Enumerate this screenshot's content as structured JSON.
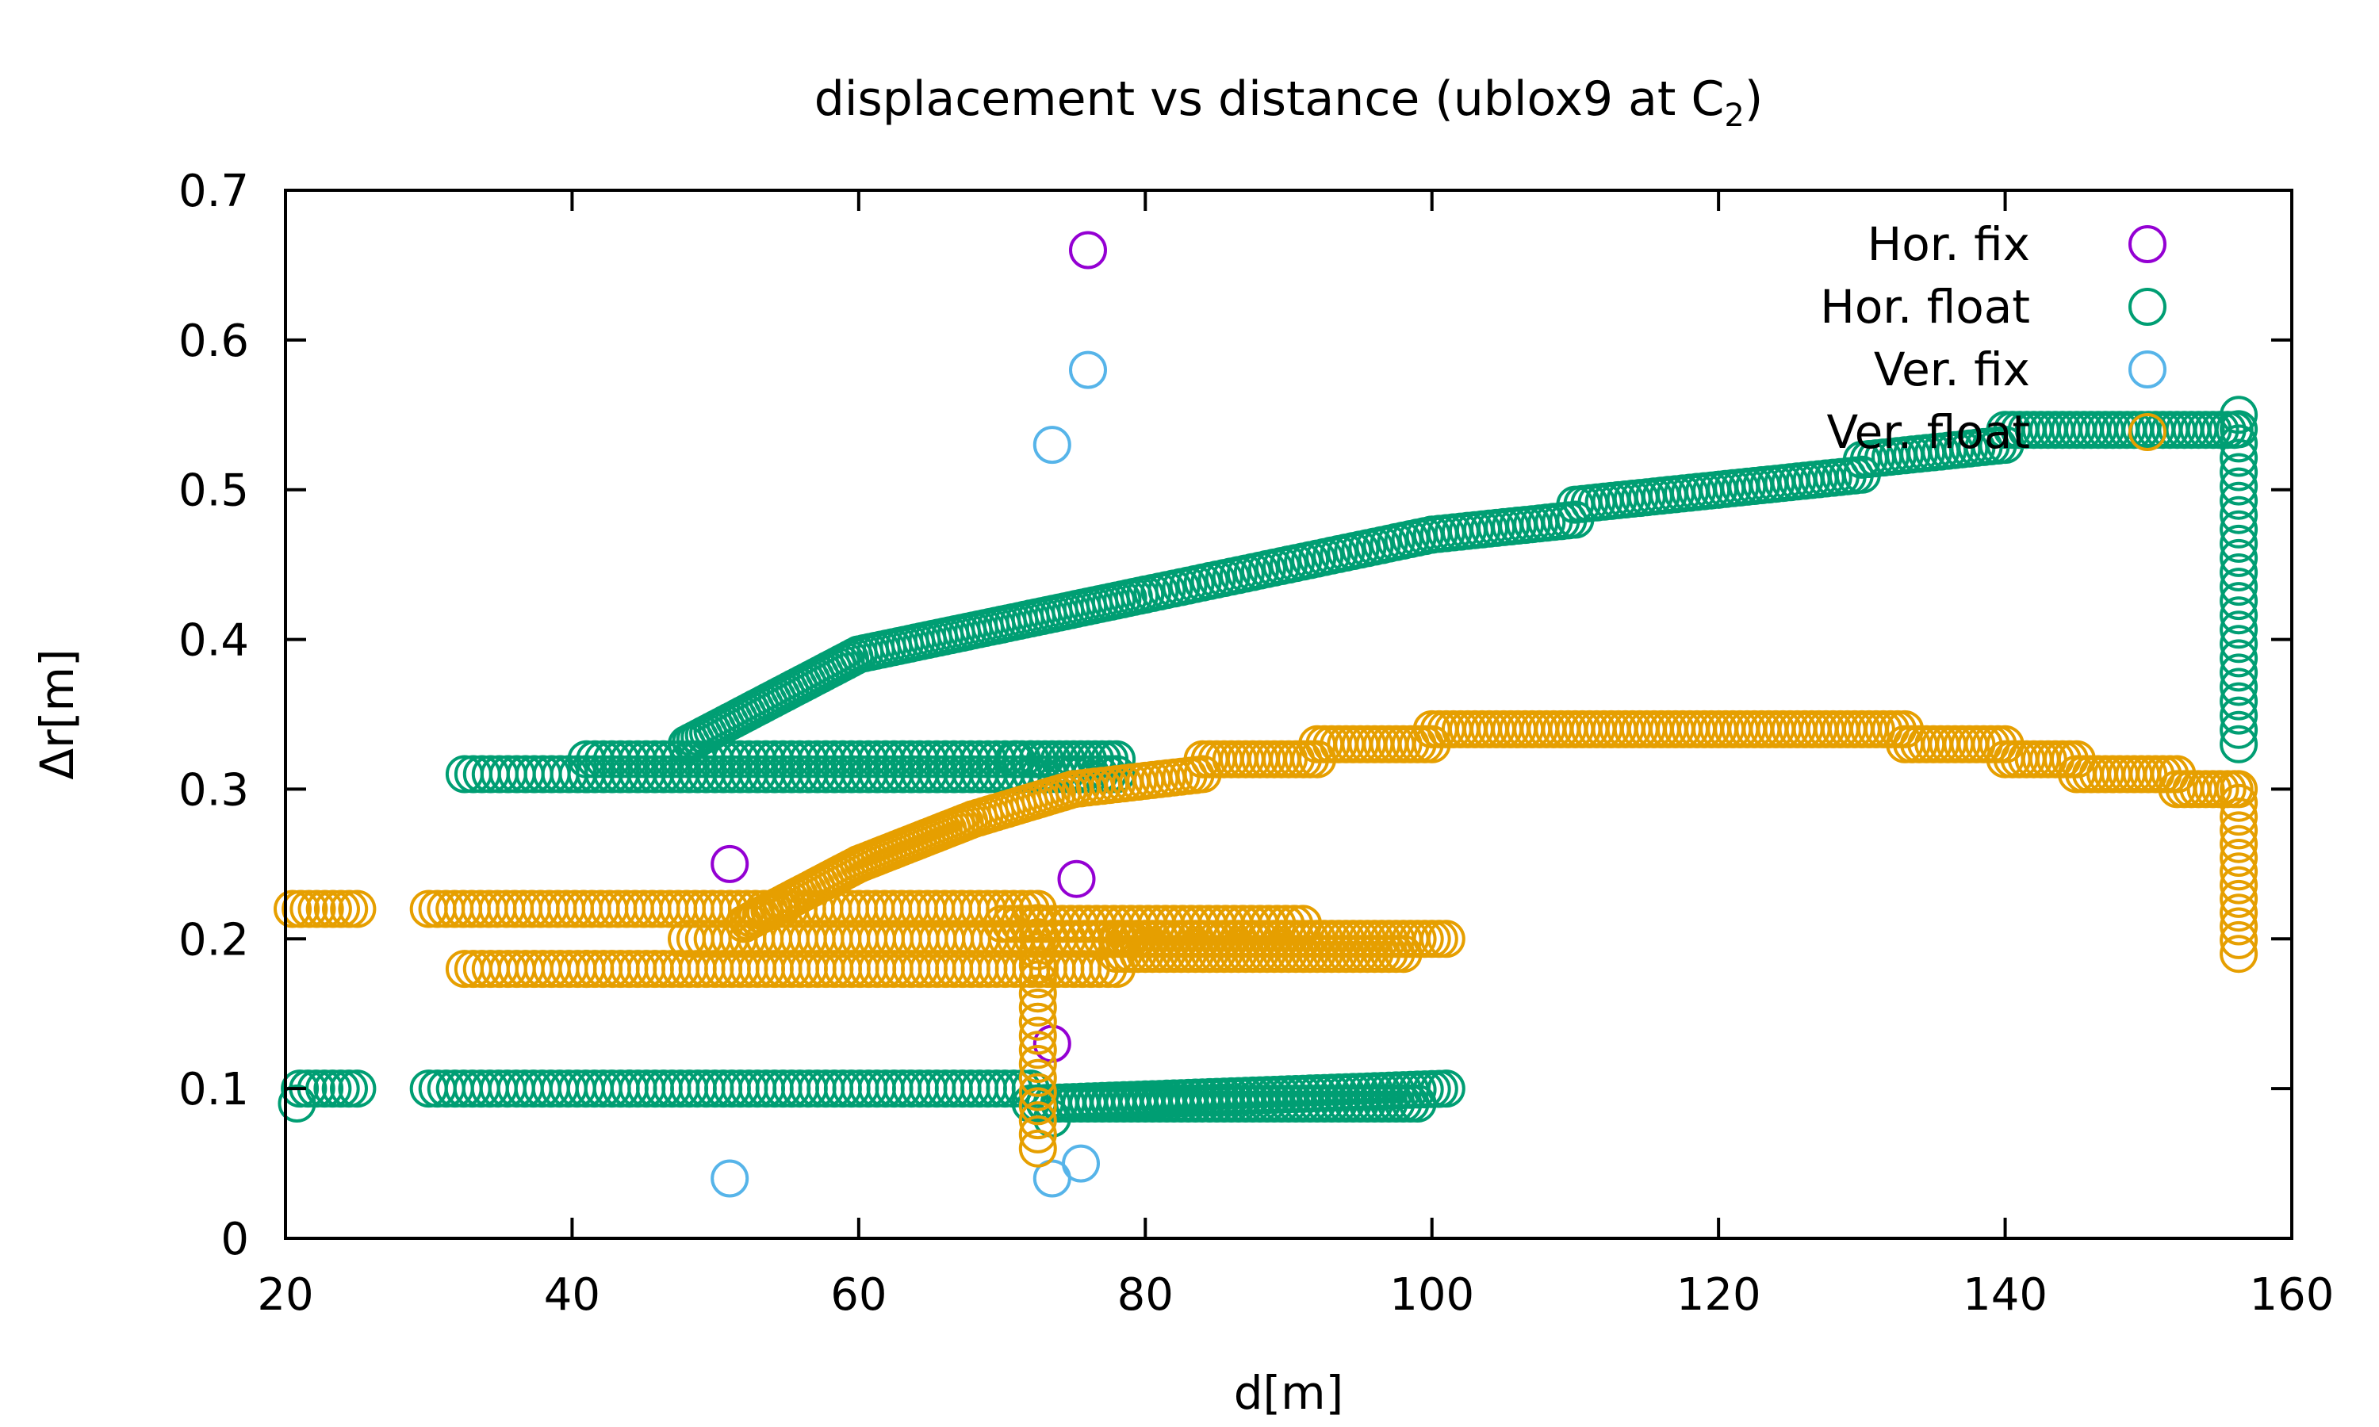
{
  "chart_data": {
    "type": "scatter",
    "title": "displacement vs distance (ublox9 at C",
    "title_subscript": "2",
    "title_close": ")",
    "xlabel": "d[m]",
    "ylabel": "Δr[m]",
    "xlim": [
      20,
      160
    ],
    "ylim": [
      0,
      0.7
    ],
    "x_ticks": [
      20,
      40,
      60,
      80,
      100,
      120,
      140,
      160
    ],
    "y_ticks": [
      0,
      0.1,
      0.2,
      0.3,
      0.4,
      0.5,
      0.6,
      0.7
    ],
    "x_tick_labels": [
      "20",
      "40",
      "60",
      "80",
      "100",
      "120",
      "140",
      "160"
    ],
    "y_tick_labels": [
      "0",
      "0.1",
      "0.2",
      "0.3",
      "0.4",
      "0.5",
      "0.6",
      "0.7"
    ],
    "grid": false,
    "legend_position": "top-right",
    "marker": "open-circle",
    "series": [
      {
        "name": "Hor. fix",
        "color": "#9400d3",
        "points": [
          [
            76,
            0.66
          ],
          [
            51,
            0.25
          ],
          [
            75.2,
            0.24
          ],
          [
            73.5,
            0.13
          ]
        ]
      },
      {
        "name": "Hor. float",
        "color": "#009e73",
        "segments": [
          {
            "x": [
              21,
              25
            ],
            "y": [
              0.1,
              0.1
            ],
            "step": 0.6
          },
          {
            "x": [
              30,
              44
            ],
            "y": [
              0.1,
              0.1
            ],
            "step": 0.6
          },
          {
            "x": [
              44,
              72
            ],
            "y": [
              0.1,
              0.1
            ],
            "step": 0.6
          },
          {
            "x": [
              72,
              101
            ],
            "y": [
              0.09,
              0.1
            ],
            "step": 0.5
          },
          {
            "x": [
              72,
              99
            ],
            "y": [
              0.09,
              0.09
            ],
            "step": 0.5
          },
          {
            "x": [
              32.5,
              41
            ],
            "y": [
              0.31,
              0.31
            ],
            "step": 0.6
          },
          {
            "x": [
              41,
              72
            ],
            "y": [
              0.32,
              0.32
            ],
            "step": 0.6
          },
          {
            "x": [
              41,
              78
            ],
            "y": [
              0.31,
              0.31
            ],
            "step": 0.6
          },
          {
            "x": [
              72,
              78
            ],
            "y": [
              0.32,
              0.32
            ],
            "step": 0.5
          },
          {
            "x": [
              48,
              60
            ],
            "y": [
              0.33,
              0.39
            ],
            "step": 0.3
          },
          {
            "x": [
              60,
              70
            ],
            "y": [
              0.39,
              0.41
            ],
            "step": 0.4
          },
          {
            "x": [
              70,
              80
            ],
            "y": [
              0.41,
              0.43
            ],
            "step": 0.4
          },
          {
            "x": [
              80,
              90
            ],
            "y": [
              0.43,
              0.45
            ],
            "step": 0.5
          },
          {
            "x": [
              90,
              100
            ],
            "y": [
              0.45,
              0.47
            ],
            "step": 0.5
          },
          {
            "x": [
              100,
              110
            ],
            "y": [
              0.47,
              0.48
            ],
            "step": 0.5
          },
          {
            "x": [
              110,
              120
            ],
            "y": [
              0.49,
              0.5
            ],
            "step": 0.5
          },
          {
            "x": [
              120,
              130
            ],
            "y": [
              0.5,
              0.51
            ],
            "step": 0.5
          },
          {
            "x": [
              130,
              140
            ],
            "y": [
              0.52,
              0.53
            ],
            "step": 0.5
          },
          {
            "x": [
              140,
              156
            ],
            "y": [
              0.54,
              0.54
            ],
            "step": 0.5
          },
          {
            "x": [
              156.3,
              156.3
            ],
            "y": [
              0.55,
              0.33
            ],
            "step": 0.0,
            "count": 23
          }
        ],
        "points": [
          [
            20.8,
            0.09
          ],
          [
            71,
            0.32
          ],
          [
            73.5,
            0.08
          ]
        ]
      },
      {
        "name": "Ver. fix",
        "color": "#56b4e9",
        "points": [
          [
            76,
            0.58
          ],
          [
            73.5,
            0.53
          ],
          [
            51,
            0.04
          ],
          [
            73.5,
            0.04
          ],
          [
            75.5,
            0.05
          ]
        ]
      },
      {
        "name": "Ver. float",
        "color": "#e69f00",
        "segments": [
          {
            "x": [
              20.5,
              25
            ],
            "y": [
              0.22,
              0.22
            ],
            "step": 0.6
          },
          {
            "x": [
              30,
              72
            ],
            "y": [
              0.22,
              0.22
            ],
            "step": 0.6
          },
          {
            "x": [
              32.5,
              41
            ],
            "y": [
              0.18,
              0.18
            ],
            "step": 0.6
          },
          {
            "x": [
              41,
              78
            ],
            "y": [
              0.18,
              0.18
            ],
            "step": 0.6
          },
          {
            "x": [
              48,
              80
            ],
            "y": [
              0.2,
              0.2
            ],
            "step": 0.6
          },
          {
            "x": [
              70,
              91
            ],
            "y": [
              0.21,
              0.21
            ],
            "step": 0.6
          },
          {
            "x": [
              78,
              101
            ],
            "y": [
              0.2,
              0.2
            ],
            "step": 0.5
          },
          {
            "x": [
              78,
              98
            ],
            "y": [
              0.19,
              0.19
            ],
            "step": 0.5
          },
          {
            "x": [
              72.5,
              72.5
            ],
            "y": [
              0.22,
              0.06
            ],
            "step": 0.0,
            "count": 17
          },
          {
            "x": [
              52,
              60
            ],
            "y": [
              0.21,
              0.25
            ],
            "step": 0.3
          },
          {
            "x": [
              60,
              68
            ],
            "y": [
              0.25,
              0.28
            ],
            "step": 0.3
          },
          {
            "x": [
              68,
              75
            ],
            "y": [
              0.28,
              0.3
            ],
            "step": 0.4
          },
          {
            "x": [
              75,
              84
            ],
            "y": [
              0.3,
              0.31
            ],
            "step": 0.5
          },
          {
            "x": [
              84,
              92
            ],
            "y": [
              0.32,
              0.32
            ],
            "step": 0.5
          },
          {
            "x": [
              92,
              100
            ],
            "y": [
              0.33,
              0.33
            ],
            "step": 0.5
          },
          {
            "x": [
              100,
              133
            ],
            "y": [
              0.34,
              0.34
            ],
            "step": 0.5
          },
          {
            "x": [
              133,
              140
            ],
            "y": [
              0.33,
              0.33
            ],
            "step": 0.5
          },
          {
            "x": [
              140,
              145
            ],
            "y": [
              0.32,
              0.32
            ],
            "step": 0.5
          },
          {
            "x": [
              145,
              152
            ],
            "y": [
              0.31,
              0.31
            ],
            "step": 0.5
          },
          {
            "x": [
              152,
              156
            ],
            "y": [
              0.3,
              0.3
            ],
            "step": 0.5
          },
          {
            "x": [
              156.3,
              156.3
            ],
            "y": [
              0.3,
              0.19
            ],
            "step": 0.0,
            "count": 12
          }
        ],
        "points": []
      }
    ]
  }
}
